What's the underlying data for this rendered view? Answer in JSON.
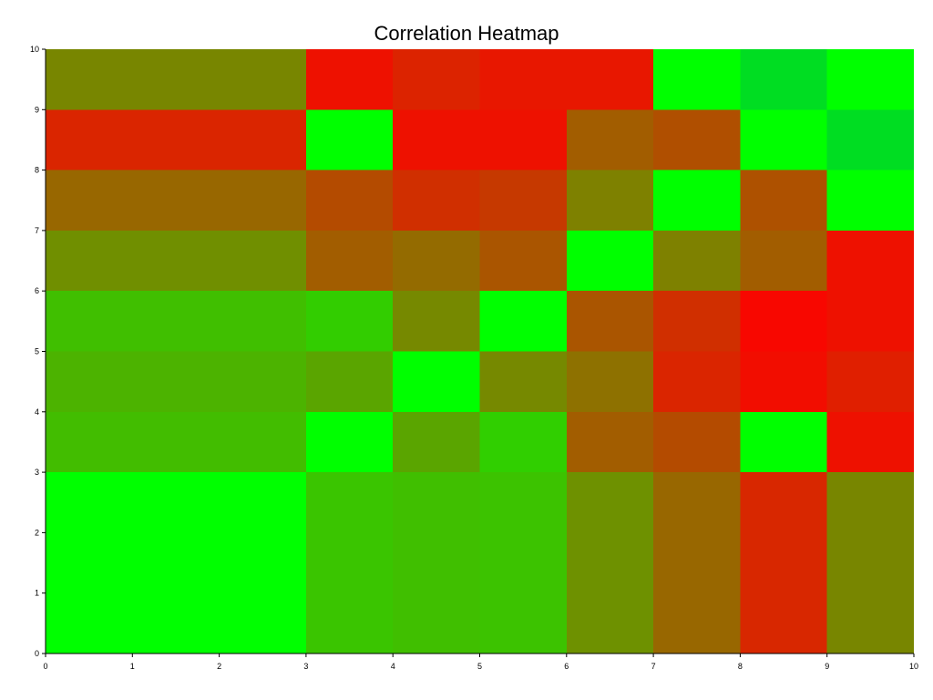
{
  "chart_data": {
    "type": "heatmap",
    "title": "Correlation Heatmap",
    "xlabel": "",
    "ylabel": "",
    "xlim": [
      0,
      10
    ],
    "ylim": [
      0,
      10
    ],
    "x_ticks": [
      "0",
      "1",
      "2",
      "3",
      "4",
      "5",
      "6",
      "7",
      "8",
      "9",
      "10"
    ],
    "y_ticks": [
      "0",
      "1",
      "2",
      "3",
      "4",
      "5",
      "6",
      "7",
      "8",
      "9",
      "10"
    ],
    "cells": [
      {
        "x0": 0,
        "x1": 3,
        "y0": 9,
        "y1": 10,
        "color": "#788600"
      },
      {
        "x0": 3,
        "x1": 4,
        "y0": 9,
        "y1": 10,
        "color": "#ee1100"
      },
      {
        "x0": 4,
        "x1": 5,
        "y0": 9,
        "y1": 10,
        "color": "#dc2300"
      },
      {
        "x0": 5,
        "x1": 7,
        "y0": 9,
        "y1": 10,
        "color": "#e81700"
      },
      {
        "x0": 7,
        "x1": 8,
        "y0": 9,
        "y1": 10,
        "color": "#00ff00"
      },
      {
        "x0": 8,
        "x1": 9,
        "y0": 9,
        "y1": 10,
        "color": "#00dd22"
      },
      {
        "x0": 9,
        "x1": 10,
        "y0": 9,
        "y1": 10,
        "color": "#00ff00"
      },
      {
        "x0": 0,
        "x1": 3,
        "y0": 8,
        "y1": 9,
        "color": "#da2500"
      },
      {
        "x0": 3,
        "x1": 4,
        "y0": 8,
        "y1": 9,
        "color": "#00ff00"
      },
      {
        "x0": 4,
        "x1": 6,
        "y0": 8,
        "y1": 9,
        "color": "#ee1100"
      },
      {
        "x0": 6,
        "x1": 7,
        "y0": 8,
        "y1": 9,
        "color": "#a25d00"
      },
      {
        "x0": 7,
        "x1": 8,
        "y0": 8,
        "y1": 9,
        "color": "#b04f00"
      },
      {
        "x0": 8,
        "x1": 9,
        "y0": 8,
        "y1": 9,
        "color": "#00ff00"
      },
      {
        "x0": 9,
        "x1": 10,
        "y0": 8,
        "y1": 9,
        "color": "#00dd22"
      },
      {
        "x0": 0,
        "x1": 3,
        "y0": 7,
        "y1": 8,
        "color": "#986700"
      },
      {
        "x0": 3,
        "x1": 4,
        "y0": 7,
        "y1": 8,
        "color": "#b44b00"
      },
      {
        "x0": 4,
        "x1": 5,
        "y0": 7,
        "y1": 8,
        "color": "#d02f00"
      },
      {
        "x0": 5,
        "x1": 6,
        "y0": 7,
        "y1": 8,
        "color": "#c63900"
      },
      {
        "x0": 6,
        "x1": 7,
        "y0": 7,
        "y1": 8,
        "color": "#7e8100"
      },
      {
        "x0": 7,
        "x1": 8,
        "y0": 7,
        "y1": 8,
        "color": "#00ff00"
      },
      {
        "x0": 8,
        "x1": 9,
        "y0": 7,
        "y1": 8,
        "color": "#ae5100"
      },
      {
        "x0": 9,
        "x1": 10,
        "y0": 7,
        "y1": 8,
        "color": "#00ff00"
      },
      {
        "x0": 0,
        "x1": 3,
        "y0": 6,
        "y1": 7,
        "color": "#708f00"
      },
      {
        "x0": 3,
        "x1": 4,
        "y0": 6,
        "y1": 7,
        "color": "#a25d00"
      },
      {
        "x0": 4,
        "x1": 5,
        "y0": 6,
        "y1": 7,
        "color": "#946b00"
      },
      {
        "x0": 5,
        "x1": 6,
        "y0": 6,
        "y1": 7,
        "color": "#aa5500"
      },
      {
        "x0": 6,
        "x1": 7,
        "y0": 6,
        "y1": 7,
        "color": "#00ff00"
      },
      {
        "x0": 7,
        "x1": 8,
        "y0": 6,
        "y1": 7,
        "color": "#7e8100"
      },
      {
        "x0": 8,
        "x1": 9,
        "y0": 6,
        "y1": 7,
        "color": "#a25d00"
      },
      {
        "x0": 9,
        "x1": 10,
        "y0": 6,
        "y1": 7,
        "color": "#ee1100"
      },
      {
        "x0": 0,
        "x1": 3,
        "y0": 5,
        "y1": 6,
        "color": "#40bf00"
      },
      {
        "x0": 3,
        "x1": 4,
        "y0": 5,
        "y1": 6,
        "color": "#32cd00"
      },
      {
        "x0": 4,
        "x1": 5,
        "y0": 5,
        "y1": 6,
        "color": "#768900"
      },
      {
        "x0": 5,
        "x1": 6,
        "y0": 5,
        "y1": 6,
        "color": "#00ff00"
      },
      {
        "x0": 6,
        "x1": 7,
        "y0": 5,
        "y1": 6,
        "color": "#aa5500"
      },
      {
        "x0": 7,
        "x1": 8,
        "y0": 5,
        "y1": 6,
        "color": "#d02f00"
      },
      {
        "x0": 8,
        "x1": 9,
        "y0": 5,
        "y1": 6,
        "color": "#f80700"
      },
      {
        "x0": 9,
        "x1": 10,
        "y0": 5,
        "y1": 6,
        "color": "#ee1100"
      },
      {
        "x0": 0,
        "x1": 3,
        "y0": 4,
        "y1": 5,
        "color": "#4cb300"
      },
      {
        "x0": 3,
        "x1": 4,
        "y0": 4,
        "y1": 5,
        "color": "#5aa500"
      },
      {
        "x0": 4,
        "x1": 5,
        "y0": 4,
        "y1": 5,
        "color": "#00ff00"
      },
      {
        "x0": 5,
        "x1": 6,
        "y0": 4,
        "y1": 5,
        "color": "#768900"
      },
      {
        "x0": 6,
        "x1": 7,
        "y0": 4,
        "y1": 5,
        "color": "#8e7100"
      },
      {
        "x0": 7,
        "x1": 8,
        "y0": 4,
        "y1": 5,
        "color": "#da2500"
      },
      {
        "x0": 8,
        "x1": 9,
        "y0": 4,
        "y1": 5,
        "color": "#f20d00"
      },
      {
        "x0": 9,
        "x1": 10,
        "y0": 4,
        "y1": 5,
        "color": "#e01f00"
      },
      {
        "x0": 0,
        "x1": 3,
        "y0": 3,
        "y1": 4,
        "color": "#42bd00"
      },
      {
        "x0": 3,
        "x1": 4,
        "y0": 3,
        "y1": 4,
        "color": "#00ff00"
      },
      {
        "x0": 4,
        "x1": 5,
        "y0": 3,
        "y1": 4,
        "color": "#5aa500"
      },
      {
        "x0": 5,
        "x1": 6,
        "y0": 3,
        "y1": 4,
        "color": "#30cf00"
      },
      {
        "x0": 6,
        "x1": 7,
        "y0": 3,
        "y1": 4,
        "color": "#a25d00"
      },
      {
        "x0": 7,
        "x1": 8,
        "y0": 3,
        "y1": 4,
        "color": "#b44b00"
      },
      {
        "x0": 8,
        "x1": 9,
        "y0": 3,
        "y1": 4,
        "color": "#00ff00"
      },
      {
        "x0": 9,
        "x1": 10,
        "y0": 3,
        "y1": 4,
        "color": "#ee1100"
      },
      {
        "x0": 0,
        "x1": 3,
        "y0": 0,
        "y1": 3,
        "color": "#00ff00"
      },
      {
        "x0": 3,
        "x1": 4,
        "y0": 0,
        "y1": 3,
        "color": "#3ac500"
      },
      {
        "x0": 4,
        "x1": 5,
        "y0": 0,
        "y1": 3,
        "color": "#40bf00"
      },
      {
        "x0": 5,
        "x1": 6,
        "y0": 0,
        "y1": 3,
        "color": "#3cc300"
      },
      {
        "x0": 6,
        "x1": 7,
        "y0": 0,
        "y1": 3,
        "color": "#6e9100"
      },
      {
        "x0": 7,
        "x1": 8,
        "y0": 0,
        "y1": 3,
        "color": "#986700"
      },
      {
        "x0": 8,
        "x1": 9,
        "y0": 0,
        "y1": 3,
        "color": "#d82700"
      },
      {
        "x0": 9,
        "x1": 10,
        "y0": 0,
        "y1": 3,
        "color": "#788600"
      }
    ],
    "grid": false,
    "legend": "none"
  }
}
